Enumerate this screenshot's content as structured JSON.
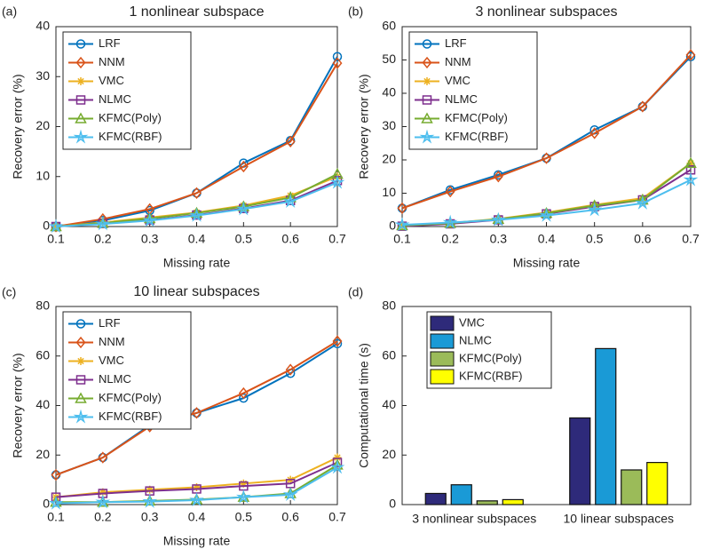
{
  "chart_data": [
    {
      "type": "line",
      "panel_label": "(a)",
      "title": "1 nonlinear subspace",
      "x_label": "Missing rate",
      "y_label": "Recovery error (%)",
      "x": [
        0.1,
        0.2,
        0.3,
        0.4,
        0.5,
        0.6,
        0.7
      ],
      "xlim": [
        0.1,
        0.7
      ],
      "xticks": [
        0.1,
        0.2,
        0.3,
        0.4,
        0.5,
        0.6,
        0.7
      ],
      "ylim": [
        0,
        40
      ],
      "yticks": [
        0,
        10,
        20,
        30,
        40
      ],
      "grid": false,
      "legend": "upper left",
      "series": [
        {
          "name": "LRF",
          "color": "#0072bd",
          "marker": "circle",
          "values": [
            0,
            1.2,
            3.2,
            6.7,
            12.7,
            17.2,
            34
          ]
        },
        {
          "name": "NNM",
          "color": "#d95319",
          "marker": "diamond",
          "values": [
            0,
            1.5,
            3.5,
            6.7,
            12,
            17,
            32.7
          ]
        },
        {
          "name": "VMC",
          "color": "#edb120",
          "marker": "asterisk",
          "values": [
            0,
            0.8,
            1.8,
            2.8,
            4.2,
            6.2,
            10
          ]
        },
        {
          "name": "NLMC",
          "color": "#7e2f8e",
          "marker": "square",
          "values": [
            0,
            0.6,
            1.3,
            2.3,
            3.6,
            5.2,
            9.2
          ]
        },
        {
          "name": "KFMC(Poly)",
          "color": "#77ac30",
          "marker": "triangle",
          "values": [
            0,
            0.7,
            1.6,
            2.7,
            4,
            5.8,
            10.5
          ]
        },
        {
          "name": "KFMC(RBF)",
          "color": "#4dbeee",
          "marker": "star",
          "values": [
            0,
            0.5,
            1.2,
            2.2,
            3.5,
            5,
            8.8
          ]
        }
      ]
    },
    {
      "type": "line",
      "panel_label": "(b)",
      "title": "3 nonlinear subspaces",
      "x_label": "Missing rate",
      "y_label": "Recovery error (%)",
      "x": [
        0.1,
        0.2,
        0.3,
        0.4,
        0.5,
        0.6,
        0.7
      ],
      "xlim": [
        0.1,
        0.7
      ],
      "xticks": [
        0.1,
        0.2,
        0.3,
        0.4,
        0.5,
        0.6,
        0.7
      ],
      "ylim": [
        0,
        60
      ],
      "yticks": [
        0,
        10,
        20,
        30,
        40,
        50,
        60
      ],
      "grid": false,
      "legend": "upper left",
      "series": [
        {
          "name": "LRF",
          "color": "#0072bd",
          "marker": "circle",
          "values": [
            5.5,
            11,
            15.5,
            20.5,
            29,
            36,
            51
          ]
        },
        {
          "name": "NNM",
          "color": "#d95319",
          "marker": "diamond",
          "values": [
            5.5,
            10.5,
            15,
            20.5,
            28,
            36,
            51.5
          ]
        },
        {
          "name": "VMC",
          "color": "#edb120",
          "marker": "asterisk",
          "values": [
            0.3,
            1,
            2.3,
            4.2,
            6.5,
            8.5,
            19
          ]
        },
        {
          "name": "NLMC",
          "color": "#7e2f8e",
          "marker": "square",
          "values": [
            0.1,
            0.8,
            2,
            3.8,
            6,
            8,
            17
          ]
        },
        {
          "name": "KFMC(Poly)",
          "color": "#77ac30",
          "marker": "triangle",
          "values": [
            0.3,
            1,
            2.2,
            4,
            6.3,
            8,
            19
          ]
        },
        {
          "name": "KFMC(RBF)",
          "color": "#4dbeee",
          "marker": "star",
          "values": [
            0.5,
            1.2,
            2,
            3.3,
            5,
            7,
            14
          ]
        }
      ]
    },
    {
      "type": "line",
      "panel_label": "(c)",
      "title": "10 linear subspaces",
      "x_label": "Missing rate",
      "y_label": "Recovery error (%)",
      "x": [
        0.1,
        0.2,
        0.3,
        0.4,
        0.5,
        0.6,
        0.7
      ],
      "xlim": [
        0.1,
        0.7
      ],
      "xticks": [
        0.1,
        0.2,
        0.3,
        0.4,
        0.5,
        0.6,
        0.7
      ],
      "ylim": [
        0,
        80
      ],
      "yticks": [
        0,
        20,
        40,
        60,
        80
      ],
      "grid": false,
      "legend": "upper left",
      "series": [
        {
          "name": "LRF",
          "color": "#0072bd",
          "marker": "circle",
          "values": [
            12,
            19,
            32,
            37,
            43,
            53,
            65
          ]
        },
        {
          "name": "NNM",
          "color": "#d95319",
          "marker": "diamond",
          "values": [
            12,
            19,
            31.5,
            37,
            45,
            54.5,
            66
          ]
        },
        {
          "name": "VMC",
          "color": "#edb120",
          "marker": "asterisk",
          "values": [
            3,
            5,
            6,
            7,
            8.5,
            10,
            19
          ]
        },
        {
          "name": "NLMC",
          "color": "#7e2f8e",
          "marker": "square",
          "values": [
            3,
            4.5,
            5.5,
            6.3,
            7.5,
            8.5,
            17
          ]
        },
        {
          "name": "KFMC(Poly)",
          "color": "#77ac30",
          "marker": "triangle",
          "values": [
            1,
            1,
            1.5,
            2,
            3,
            4.5,
            16
          ]
        },
        {
          "name": "KFMC(RBF)",
          "color": "#4dbeee",
          "marker": "star",
          "values": [
            0.5,
            1,
            1.2,
            1.8,
            3,
            4,
            15
          ]
        }
      ]
    },
    {
      "type": "bar",
      "panel_label": "(d)",
      "y_label": "Computational time (s)",
      "categories": [
        "3 nonlinear subspaces",
        "10 linear subspaces"
      ],
      "ylim": [
        0,
        80
      ],
      "yticks": [
        0,
        20,
        40,
        60,
        80
      ],
      "grid": false,
      "legend": "upper left",
      "series": [
        {
          "name": "VMC",
          "color": "#2e2a7a",
          "values": [
            4.5,
            35
          ]
        },
        {
          "name": "NLMC",
          "color": "#1a9ad6",
          "values": [
            8,
            63
          ]
        },
        {
          "name": "KFMC(Poly)",
          "color": "#9bbb59",
          "values": [
            1.5,
            14
          ]
        },
        {
          "name": "KFMC(RBF)",
          "color": "#ffff00",
          "values": [
            2,
            17
          ]
        }
      ]
    }
  ]
}
